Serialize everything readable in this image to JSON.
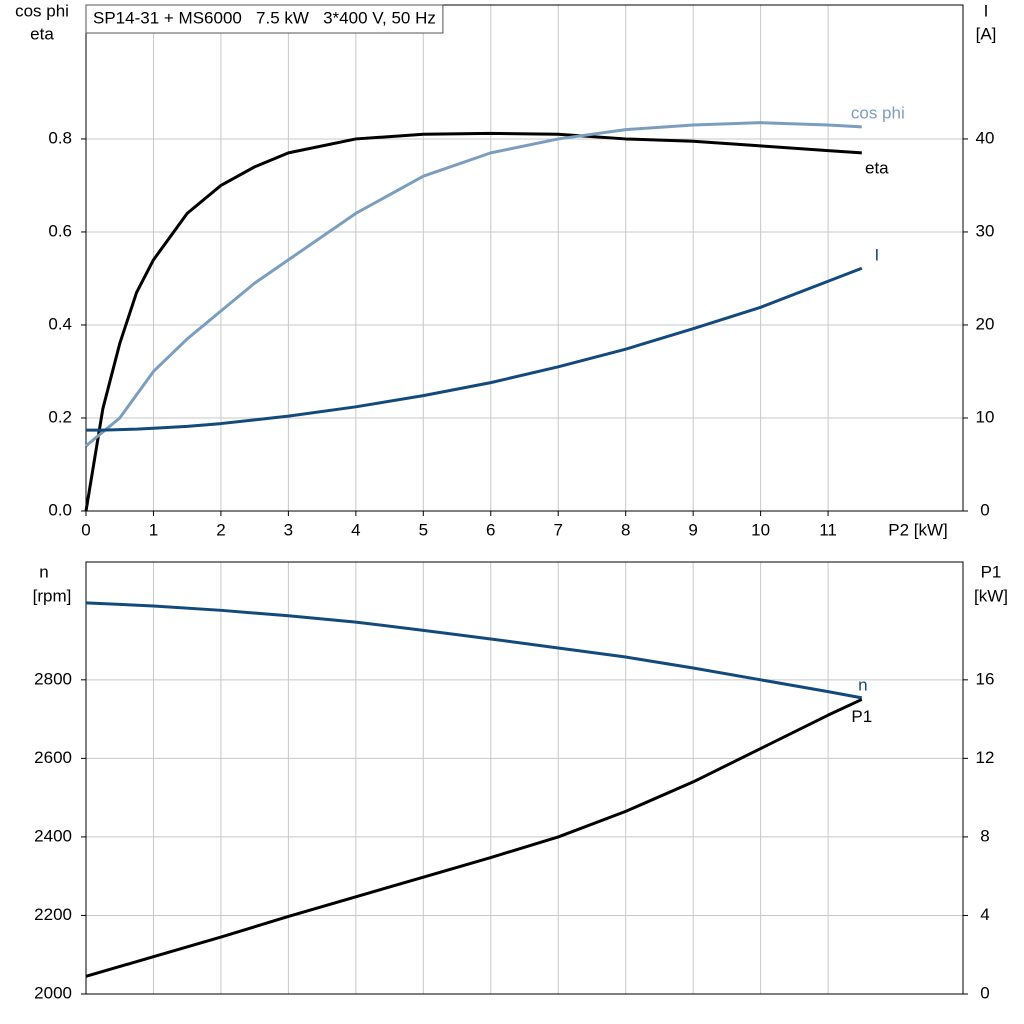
{
  "chart_data": [
    {
      "type": "line",
      "title": "SP14-31 + MS6000   7.5 kW   3*400 V, 50 Hz",
      "x": [
        0,
        0.25,
        0.5,
        0.75,
        1,
        1.5,
        2,
        2.5,
        3,
        4,
        5,
        6,
        7,
        8,
        9,
        10,
        11,
        11.5
      ],
      "xlim": [
        0,
        13
      ],
      "xticks": [
        0,
        1,
        2,
        3,
        4,
        5,
        6,
        7,
        8,
        9,
        10,
        11
      ],
      "xlabel": "P2 [kW]",
      "ylabel": [
        "cos phi",
        "eta"
      ],
      "y2label": [
        "I",
        "[A]"
      ],
      "ylim": [
        0,
        1.088
      ],
      "yticks": [
        {
          "value": 0,
          "label": "0.0"
        },
        0.2,
        0.4,
        0.6,
        0.8
      ],
      "y2lim": [
        0,
        54.4
      ],
      "y2ticks": [
        0,
        10,
        20,
        30,
        40
      ],
      "grid": true,
      "series": [
        {
          "name": "eta",
          "color": "#000000",
          "values": [
            0,
            0.22,
            0.36,
            0.47,
            0.54,
            0.64,
            0.7,
            0.74,
            0.77,
            0.8,
            0.81,
            0.812,
            0.81,
            0.8,
            0.795,
            0.785,
            0.775,
            0.77
          ]
        },
        {
          "name": "cos phi",
          "color": "#7b9ebf",
          "values": [
            0.14,
            0.17,
            0.2,
            0.25,
            0.3,
            0.37,
            0.43,
            0.49,
            0.54,
            0.64,
            0.72,
            0.77,
            0.8,
            0.82,
            0.83,
            0.835,
            0.83,
            0.826
          ]
        },
        {
          "name": "I",
          "color": "#134a7c",
          "axis": "y2",
          "values": [
            8.7,
            8.7,
            8.75,
            8.8,
            8.9,
            9.1,
            9.4,
            9.8,
            10.2,
            11.2,
            12.4,
            13.8,
            15.5,
            17.4,
            19.6,
            21.9,
            24.7,
            26.1
          ]
        }
      ]
    },
    {
      "type": "line",
      "x": [
        0,
        1,
        2,
        3,
        4,
        5,
        6,
        7,
        8,
        9,
        10,
        11,
        11.5
      ],
      "xlim": [
        0,
        13
      ],
      "ylabel": [
        "n",
        "[rpm]"
      ],
      "y2label": [
        "P1",
        "[kW]"
      ],
      "ylim": [
        2000,
        3100
      ],
      "yticks": [
        2000,
        2200,
        2400,
        2600,
        2800
      ],
      "y2lim": [
        0,
        22
      ],
      "y2ticks": [
        0,
        4,
        8,
        12,
        16
      ],
      "grid": true,
      "series": [
        {
          "name": "n",
          "color": "#134a7c",
          "values": [
            2996,
            2988,
            2977,
            2963,
            2947,
            2926,
            2904,
            2881,
            2858,
            2830,
            2800,
            2770,
            2754
          ]
        },
        {
          "name": "P1",
          "color": "#000000",
          "axis": "y2",
          "values": [
            0.9,
            1.9,
            2.9,
            3.95,
            4.95,
            5.95,
            6.95,
            8.0,
            9.3,
            10.8,
            12.5,
            14.2,
            15.0
          ]
        }
      ]
    }
  ]
}
